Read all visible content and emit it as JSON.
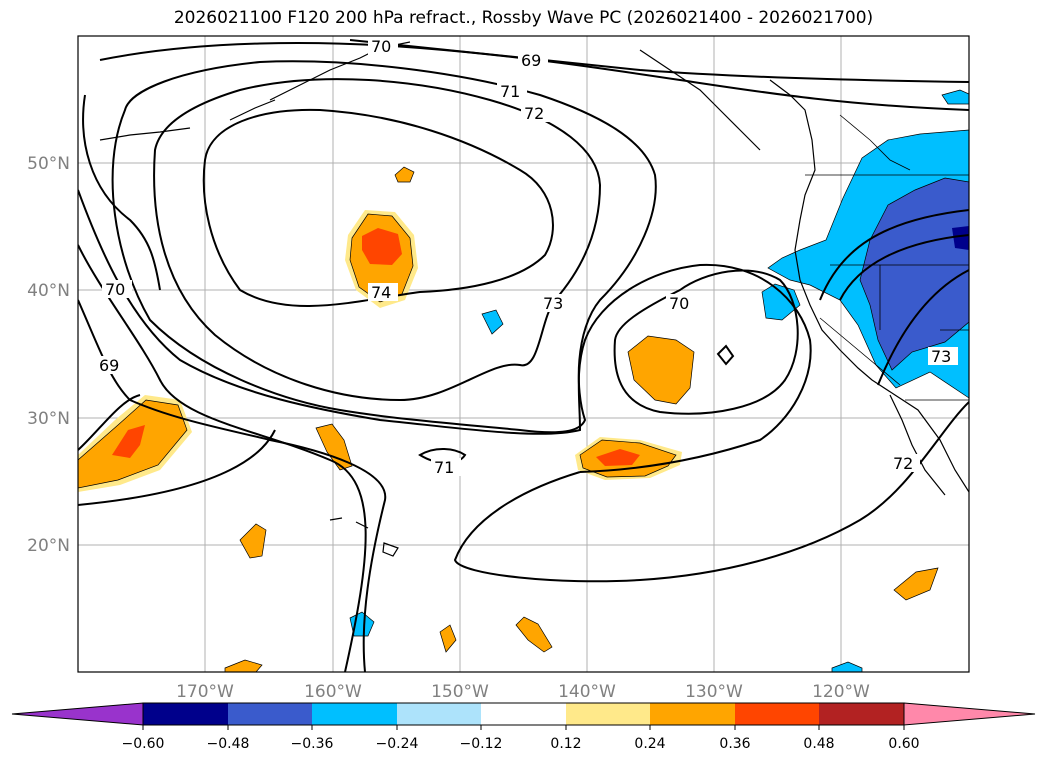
{
  "title": "2026021100 F120 200 hPa refract., Rossby Wave PC (2026021400 - 2026021700)",
  "map": {
    "lon_ticks": [
      "170°W",
      "160°W",
      "150°W",
      "140°W",
      "130°W",
      "120°W"
    ],
    "lat_ticks": [
      "50°N",
      "40°N",
      "30°N",
      "20°N"
    ],
    "contour_labels": [
      "70",
      "69",
      "71",
      "72",
      "74",
      "73",
      "70",
      "70",
      "69",
      "71",
      "72",
      "73"
    ]
  },
  "colorbar": {
    "ticks": [
      "−0.60",
      "−0.48",
      "−0.36",
      "−0.24",
      "−0.12",
      "0.12",
      "0.24",
      "0.36",
      "0.48",
      "0.60"
    ],
    "colors": [
      "#9933cc",
      "#00008b",
      "#3a5bcc",
      "#00bfff",
      "#ade3fb",
      "#ffffff",
      "#ffe98a",
      "#ffa500",
      "#ff4500",
      "#b22222",
      "#ff88aa"
    ]
  }
}
